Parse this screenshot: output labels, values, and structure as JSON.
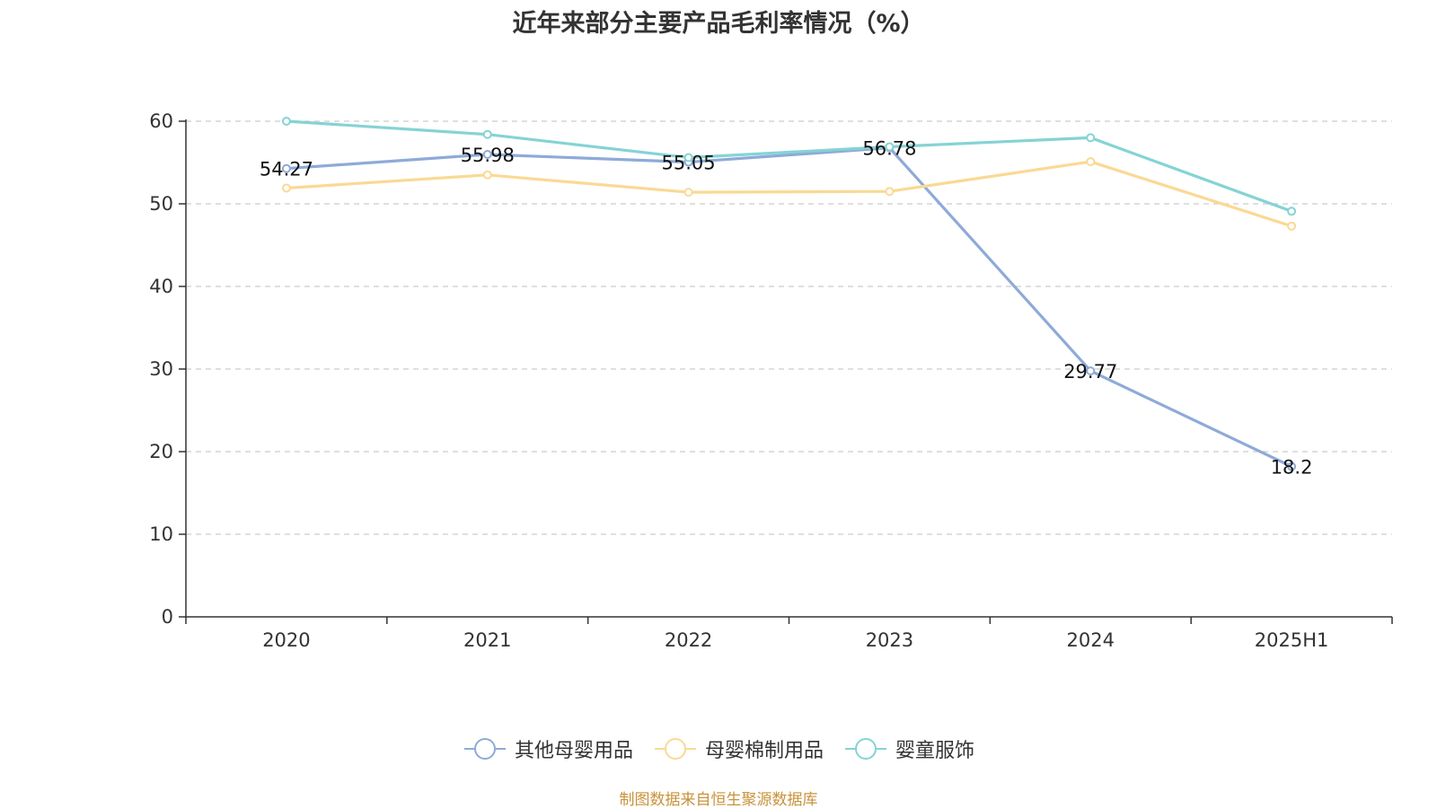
{
  "chart_data": {
    "type": "line",
    "title": "近年来部分主要产品毛利率情况（%）",
    "categories": [
      "2020",
      "2021",
      "2022",
      "2023",
      "2024",
      "2025H1"
    ],
    "ylim": [
      0,
      60
    ],
    "yticks": [
      0,
      10,
      20,
      30,
      40,
      50,
      60
    ],
    "grid": true,
    "legend_position": "bottom",
    "series": [
      {
        "name": "其他母婴用品",
        "color": "#8eaad8",
        "values": [
          54.27,
          55.98,
          55.05,
          56.78,
          29.77,
          18.2
        ],
        "labels": [
          "54.27",
          "55.98",
          "55.05",
          "56.78",
          "29.77",
          "18.2"
        ]
      },
      {
        "name": "母婴棉制用品",
        "color": "#fad994",
        "values": [
          51.9,
          53.5,
          51.4,
          51.5,
          55.1,
          47.3
        ]
      },
      {
        "name": "婴童服饰",
        "color": "#85d3d4",
        "values": [
          60.0,
          58.4,
          55.6,
          56.9,
          58.0,
          49.1
        ]
      }
    ],
    "source": "制图数据来自恒生聚源数据库"
  }
}
